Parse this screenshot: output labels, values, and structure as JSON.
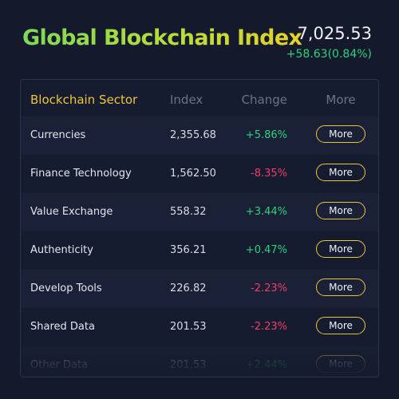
{
  "header": {
    "title": "Global Blockchain Index",
    "index_value": "7,025.53",
    "index_change": "+58.63(0.84%)"
  },
  "table": {
    "columns": [
      "Blockchain Sector",
      "Index",
      "Change",
      "More"
    ],
    "rows": [
      {
        "sector": "Currencies",
        "index": "2,355.68",
        "change": "+5.86%",
        "direction": "up",
        "action": "More"
      },
      {
        "sector": "Finance Technology",
        "index": "1,562.50",
        "change": "-8.35%",
        "direction": "down",
        "action": "More"
      },
      {
        "sector": "Value Exchange",
        "index": "558.32",
        "change": "+3.44%",
        "direction": "up",
        "action": "More"
      },
      {
        "sector": "Authenticity",
        "index": "356.21",
        "change": "+0.47%",
        "direction": "up",
        "action": "More"
      },
      {
        "sector": "Develop Tools",
        "index": "226.82",
        "change": "-2.23%",
        "direction": "down",
        "action": "More"
      },
      {
        "sector": "Shared Data",
        "index": "201.53",
        "change": "-2.23%",
        "direction": "down",
        "action": "More"
      },
      {
        "sector": "Other Data",
        "index": "201.53",
        "change": "+2.44%",
        "direction": "up",
        "action": "More"
      }
    ]
  },
  "colors": {
    "background": "#141a2c",
    "accent": "#f0c43a",
    "positive": "#2fd17c",
    "negative": "#f23c68"
  }
}
